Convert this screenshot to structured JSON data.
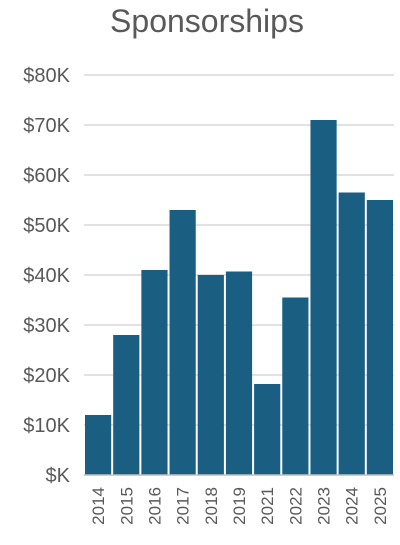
{
  "chart_data": {
    "type": "bar",
    "title": "Sponsorships",
    "xlabel": "",
    "ylabel": "",
    "categories": [
      "2014",
      "2015",
      "2016",
      "2017",
      "2018",
      "2019",
      "2021",
      "2022",
      "2023",
      "2024",
      "2025"
    ],
    "values": [
      12000,
      28000,
      41000,
      53000,
      40000,
      40700,
      18200,
      35500,
      71000,
      56500,
      55000
    ],
    "ylim": [
      0,
      80000
    ],
    "y_ticks": [
      0,
      10000,
      20000,
      30000,
      40000,
      50000,
      60000,
      70000,
      80000
    ],
    "y_tick_labels": [
      "$K",
      "$10K",
      "$20K",
      "$30K",
      "$40K",
      "$50K",
      "$60K",
      "$70K",
      "$80K"
    ],
    "grid": true,
    "legend": "none",
    "bar_color": "#1a5f82"
  }
}
